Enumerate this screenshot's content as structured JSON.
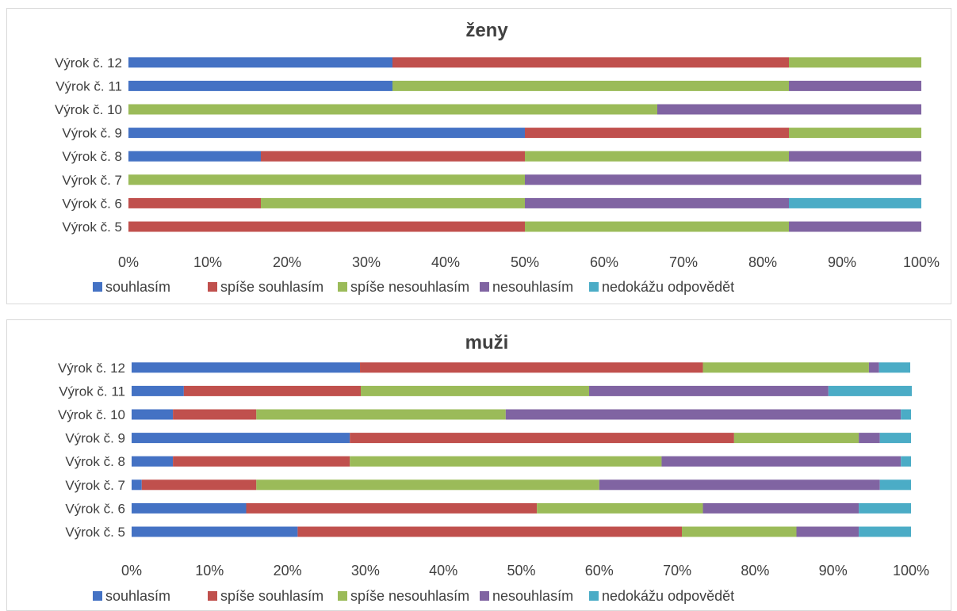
{
  "chart_data": [
    {
      "type": "bar",
      "orientation": "horizontal",
      "stacked": "percent",
      "title": "ženy",
      "categories": [
        "Výrok č. 12",
        "Výrok č. 11",
        "Výrok č. 10",
        "Výrok č. 9",
        "Výrok č. 8",
        "Výrok č. 7",
        "Výrok č. 6",
        "Výrok č. 5"
      ],
      "series": [
        {
          "name": "souhlasím",
          "color": "#4472C4",
          "values": [
            33.3,
            33.3,
            0,
            50,
            16.7,
            0,
            0,
            0
          ]
        },
        {
          "name": "spíše souhlasím",
          "color": "#C0504D",
          "values": [
            50,
            0,
            0,
            33.3,
            33.3,
            0,
            16.7,
            50
          ]
        },
        {
          "name": "spíše nesouhlasím",
          "color": "#9BBB59",
          "values": [
            16.7,
            50,
            66.7,
            16.7,
            33.3,
            50,
            33.3,
            33.3
          ]
        },
        {
          "name": "nesouhlasím",
          "color": "#8064A2",
          "values": [
            0,
            16.7,
            33.3,
            0,
            16.7,
            50,
            33.3,
            16.7
          ]
        },
        {
          "name": "nedokážu odpovědět",
          "color": "#4BACC6",
          "values": [
            0,
            0,
            0,
            0,
            0,
            0,
            16.7,
            0
          ]
        }
      ],
      "xlim": [
        0,
        100
      ],
      "xticks": [
        "0%",
        "10%",
        "20%",
        "30%",
        "40%",
        "50%",
        "60%",
        "70%",
        "80%",
        "90%",
        "100%"
      ],
      "legend": "bottom",
      "grid": false
    },
    {
      "type": "bar",
      "orientation": "horizontal",
      "stacked": "percent",
      "title": "muži",
      "categories": [
        "Výrok č. 12",
        "Výrok č. 11",
        "Výrok č. 10",
        "Výrok č. 9",
        "Výrok č. 8",
        "Výrok č. 7",
        "Výrok č. 6",
        "Výrok č. 5"
      ],
      "series": [
        {
          "name": "souhlasím",
          "color": "#4472C4",
          "values": [
            29.3,
            6.7,
            5.3,
            28,
            5.3,
            1.3,
            14.7,
            21.3
          ]
        },
        {
          "name": "spíše souhlasím",
          "color": "#C0504D",
          "values": [
            44,
            22.7,
            10.7,
            49.3,
            22.7,
            14.7,
            37.3,
            49.3
          ]
        },
        {
          "name": "spíše nesouhlasím",
          "color": "#9BBB59",
          "values": [
            21.3,
            29.3,
            32,
            16,
            40,
            44,
            21.3,
            14.7
          ]
        },
        {
          "name": "nesouhlasím",
          "color": "#8064A2",
          "values": [
            1.3,
            30.7,
            50.7,
            2.7,
            30.7,
            36,
            20,
            8
          ]
        },
        {
          "name": "nedokážu odpovědět",
          "color": "#4BACC6",
          "values": [
            4,
            10.7,
            1.3,
            4,
            1.3,
            4,
            6.7,
            6.7
          ]
        }
      ],
      "xlim": [
        0,
        100
      ],
      "xticks": [
        "0%",
        "10%",
        "20%",
        "30%",
        "40%",
        "50%",
        "60%",
        "70%",
        "80%",
        "90%",
        "100%"
      ],
      "legend": "bottom",
      "grid": false
    }
  ]
}
